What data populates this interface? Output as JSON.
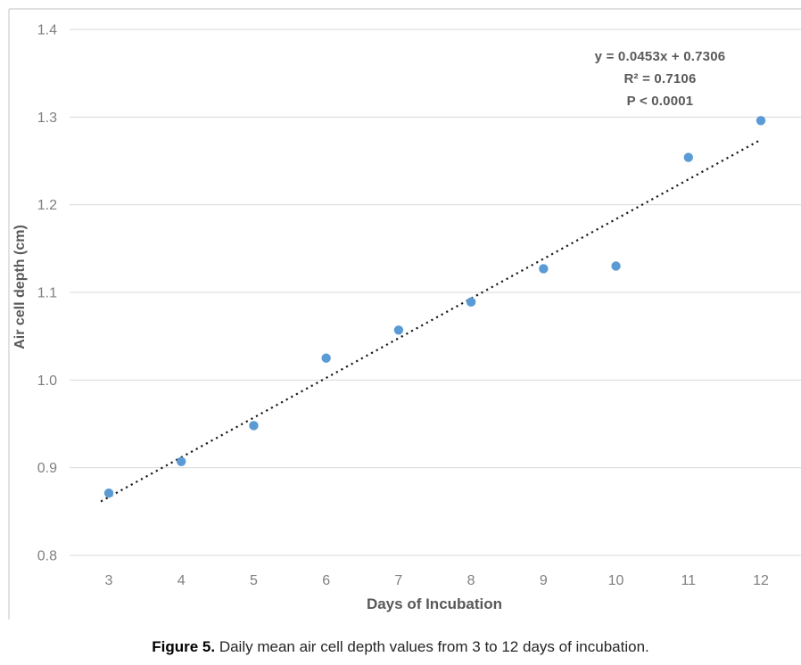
{
  "figure": {
    "caption_bold": "Figure 5.",
    "caption_rest": " Daily mean air cell depth values from 3 to 12 days of incubation."
  },
  "chart_data": {
    "type": "scatter",
    "title": "",
    "xlabel": "Days of Incubation",
    "ylabel": "Air cell depth  (cm)",
    "x": [
      3,
      4,
      5,
      6,
      7,
      8,
      9,
      10,
      11,
      12
    ],
    "y": [
      0.871,
      0.907,
      0.948,
      1.025,
      1.057,
      1.089,
      1.127,
      1.13,
      1.254,
      1.296
    ],
    "xticks": [
      "3",
      "4",
      "5",
      "6",
      "7",
      "8",
      "9",
      "10",
      "11",
      "12"
    ],
    "yticks": [
      "0.8",
      "0.9",
      "1.0",
      "1.1",
      "1.2",
      "1.3",
      "1.4"
    ],
    "ytick_values": [
      0.8,
      0.9,
      1.0,
      1.1,
      1.2,
      1.3,
      1.4
    ],
    "xlim": [
      2.45,
      12.55
    ],
    "ylim": [
      0.8,
      1.4
    ],
    "grid": "horizontal",
    "legend": "none",
    "marker_color": "#5B9BD5",
    "trendline": {
      "slope": 0.0453,
      "intercept": 0.7306,
      "style": "dotted",
      "color": "#1a1a1a",
      "x_start": 2.89,
      "x_end": 11.98
    },
    "annotation": {
      "lines": [
        "y = 0.0453x + 0.7306",
        "R² = 0.7106",
        "P < 0.0001"
      ]
    }
  }
}
